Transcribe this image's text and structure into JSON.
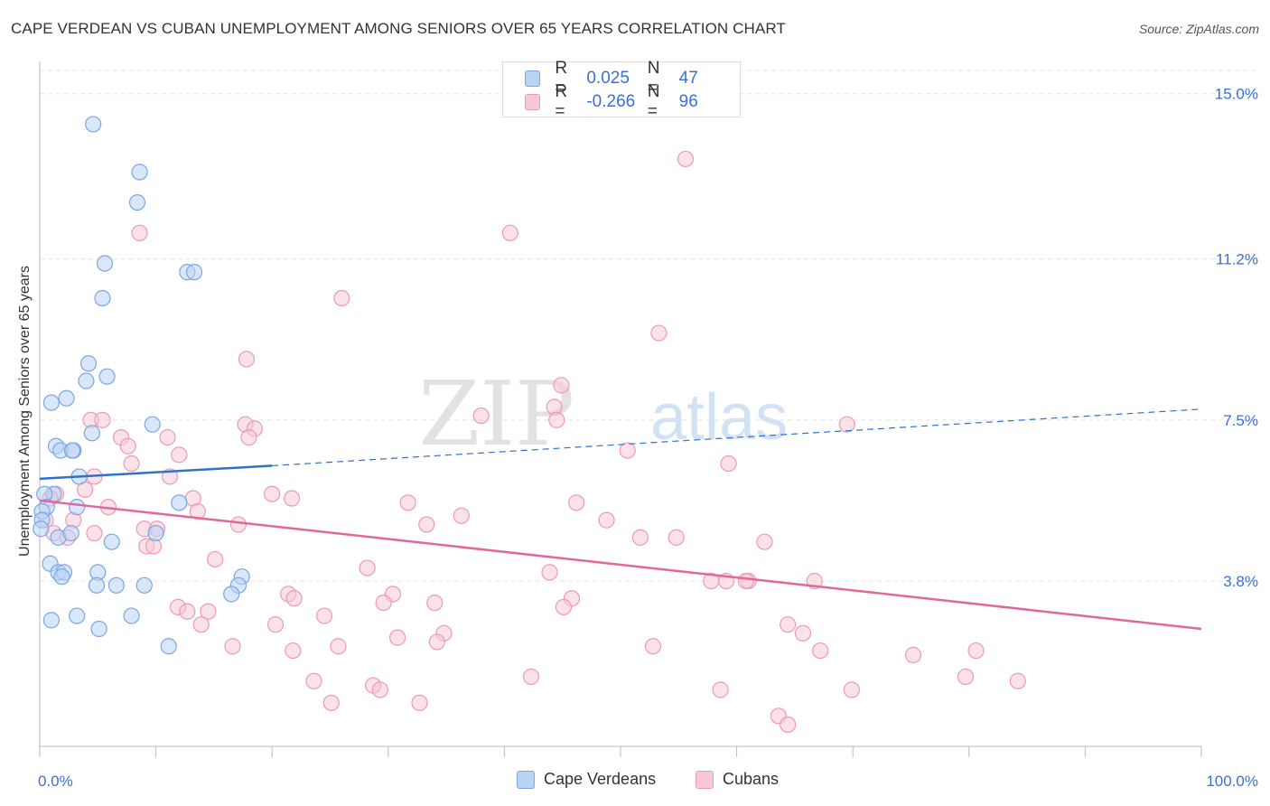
{
  "title": "CAPE VERDEAN VS CUBAN UNEMPLOYMENT AMONG SENIORS OVER 65 YEARS CORRELATION CHART",
  "source": "Source: ZipAtlas.com",
  "watermark": {
    "zip": "ZIP",
    "atlas": "atlas"
  },
  "legend": {
    "r_label": "R =",
    "n_label": "N =",
    "cape": {
      "r": "0.025",
      "n": "47"
    },
    "cuban": {
      "r": "-0.266",
      "n": "96"
    }
  },
  "bottom_legend": {
    "cape": "Cape Verdeans",
    "cuban": "Cubans"
  },
  "colors": {
    "cape_fill": "#b9d3f5",
    "cape_stroke": "#7aa6e3",
    "cape_line": "#2f72c9",
    "cuban_fill": "#f8c8d6",
    "cuban_stroke": "#ec9ab3",
    "cuban_line": "#e0689a",
    "tick_text": "#3a6fd8",
    "grid": "#e4e4e4"
  },
  "chart_data": {
    "type": "scatter",
    "title": "CAPE VERDEAN VS CUBAN UNEMPLOYMENT AMONG SENIORS OVER 65 YEARS CORRELATION CHART",
    "xlabel": "",
    "ylabel": "Unemployment Among Seniors over 65 years",
    "xlim": [
      0,
      100
    ],
    "ylim": [
      0.0,
      15.7
    ],
    "x_tick_labels": [
      {
        "value": 0,
        "label": "0.0%"
      },
      {
        "value": 100,
        "label": "100.0%"
      }
    ],
    "y_ticks": [
      {
        "value": 3.8,
        "label": "3.8%"
      },
      {
        "value": 7.5,
        "label": "7.5%"
      },
      {
        "value": 11.2,
        "label": "11.2%"
      },
      {
        "value": 15.0,
        "label": "15.0%"
      }
    ],
    "grid": true,
    "legend_position": "top-center",
    "series": [
      {
        "name": "Cape Verdeans",
        "r": 0.025,
        "n": 47,
        "trend": {
          "x0": 0,
          "y0": 6.15,
          "x1": 20,
          "y1": 6.45,
          "dashed_to_x": 100,
          "dashed_to_y": 7.75
        },
        "points": [
          [
            4.6,
            14.3
          ],
          [
            8.6,
            13.2
          ],
          [
            8.4,
            12.5
          ],
          [
            5.6,
            11.1
          ],
          [
            12.7,
            10.9
          ],
          [
            13.3,
            10.9
          ],
          [
            5.4,
            10.3
          ],
          [
            4.2,
            8.8
          ],
          [
            4.0,
            8.4
          ],
          [
            5.8,
            8.5
          ],
          [
            1.0,
            7.9
          ],
          [
            2.3,
            8.0
          ],
          [
            9.7,
            7.4
          ],
          [
            4.5,
            7.2
          ],
          [
            1.4,
            6.9
          ],
          [
            1.8,
            6.8
          ],
          [
            2.9,
            6.8
          ],
          [
            2.8,
            6.8
          ],
          [
            3.4,
            6.2
          ],
          [
            1.2,
            5.8
          ],
          [
            0.4,
            5.8
          ],
          [
            12.0,
            5.6
          ],
          [
            0.6,
            5.5
          ],
          [
            3.2,
            5.5
          ],
          [
            1.6,
            4.8
          ],
          [
            2.7,
            4.9
          ],
          [
            10.0,
            4.9
          ],
          [
            6.2,
            4.7
          ],
          [
            0.9,
            4.2
          ],
          [
            1.6,
            4.0
          ],
          [
            2.1,
            4.0
          ],
          [
            1.9,
            3.9
          ],
          [
            5.0,
            4.0
          ],
          [
            4.9,
            3.7
          ],
          [
            6.6,
            3.7
          ],
          [
            9.0,
            3.7
          ],
          [
            17.4,
            3.9
          ],
          [
            17.1,
            3.7
          ],
          [
            16.5,
            3.5
          ],
          [
            1.0,
            2.9
          ],
          [
            3.2,
            3.0
          ],
          [
            7.9,
            3.0
          ],
          [
            5.1,
            2.7
          ],
          [
            11.1,
            2.3
          ],
          [
            0.2,
            5.4
          ],
          [
            0.2,
            5.2
          ],
          [
            0.1,
            5.0
          ]
        ]
      },
      {
        "name": "Cubans",
        "r": -0.266,
        "n": 96,
        "trend": {
          "x0": 0,
          "y0": 5.65,
          "x1": 100,
          "y1": 2.7
        },
        "points": [
          [
            8.6,
            11.8
          ],
          [
            55.6,
            13.5
          ],
          [
            40.5,
            11.8
          ],
          [
            26.0,
            10.3
          ],
          [
            53.3,
            9.5
          ],
          [
            17.8,
            8.9
          ],
          [
            44.9,
            8.3
          ],
          [
            44.3,
            7.8
          ],
          [
            38.0,
            7.6
          ],
          [
            44.5,
            7.5
          ],
          [
            69.5,
            7.4
          ],
          [
            4.4,
            7.5
          ],
          [
            5.4,
            7.5
          ],
          [
            17.7,
            7.4
          ],
          [
            18.5,
            7.3
          ],
          [
            7.0,
            7.1
          ],
          [
            11.0,
            7.1
          ],
          [
            18.0,
            7.1
          ],
          [
            7.6,
            6.9
          ],
          [
            12.0,
            6.7
          ],
          [
            50.6,
            6.8
          ],
          [
            7.9,
            6.5
          ],
          [
            59.3,
            6.5
          ],
          [
            4.7,
            6.2
          ],
          [
            11.2,
            6.2
          ],
          [
            3.9,
            5.9
          ],
          [
            20.0,
            5.8
          ],
          [
            21.7,
            5.7
          ],
          [
            13.2,
            5.7
          ],
          [
            1.4,
            5.8
          ],
          [
            0.9,
            5.7
          ],
          [
            46.2,
            5.6
          ],
          [
            31.7,
            5.6
          ],
          [
            5.9,
            5.5
          ],
          [
            13.6,
            5.4
          ],
          [
            36.3,
            5.3
          ],
          [
            48.8,
            5.2
          ],
          [
            0.5,
            5.2
          ],
          [
            2.9,
            5.2
          ],
          [
            17.1,
            5.1
          ],
          [
            33.3,
            5.1
          ],
          [
            9.0,
            5.0
          ],
          [
            10.1,
            5.0
          ],
          [
            1.2,
            4.9
          ],
          [
            4.7,
            4.9
          ],
          [
            2.4,
            4.8
          ],
          [
            51.7,
            4.8
          ],
          [
            54.8,
            4.8
          ],
          [
            62.4,
            4.7
          ],
          [
            9.2,
            4.6
          ],
          [
            9.8,
            4.6
          ],
          [
            15.1,
            4.3
          ],
          [
            28.2,
            4.1
          ],
          [
            43.9,
            4.0
          ],
          [
            59.1,
            3.8
          ],
          [
            61.0,
            3.8
          ],
          [
            66.7,
            3.8
          ],
          [
            57.8,
            3.8
          ],
          [
            60.8,
            3.8
          ],
          [
            21.4,
            3.5
          ],
          [
            21.9,
            3.4
          ],
          [
            30.4,
            3.5
          ],
          [
            45.8,
            3.4
          ],
          [
            29.6,
            3.3
          ],
          [
            34.0,
            3.3
          ],
          [
            45.1,
            3.2
          ],
          [
            11.9,
            3.2
          ],
          [
            12.7,
            3.1
          ],
          [
            14.5,
            3.1
          ],
          [
            24.5,
            3.0
          ],
          [
            20.3,
            2.8
          ],
          [
            13.9,
            2.8
          ],
          [
            64.4,
            2.8
          ],
          [
            65.7,
            2.6
          ],
          [
            34.8,
            2.6
          ],
          [
            30.8,
            2.5
          ],
          [
            34.2,
            2.4
          ],
          [
            16.6,
            2.3
          ],
          [
            25.7,
            2.3
          ],
          [
            52.8,
            2.3
          ],
          [
            21.8,
            2.2
          ],
          [
            67.2,
            2.2
          ],
          [
            80.6,
            2.2
          ],
          [
            75.2,
            2.1
          ],
          [
            42.3,
            1.6
          ],
          [
            23.6,
            1.5
          ],
          [
            79.7,
            1.6
          ],
          [
            84.2,
            1.5
          ],
          [
            28.7,
            1.4
          ],
          [
            29.3,
            1.3
          ],
          [
            58.6,
            1.3
          ],
          [
            69.9,
            1.3
          ],
          [
            25.1,
            1.0
          ],
          [
            32.7,
            1.0
          ],
          [
            63.6,
            0.7
          ],
          [
            64.4,
            0.5
          ]
        ]
      }
    ]
  }
}
